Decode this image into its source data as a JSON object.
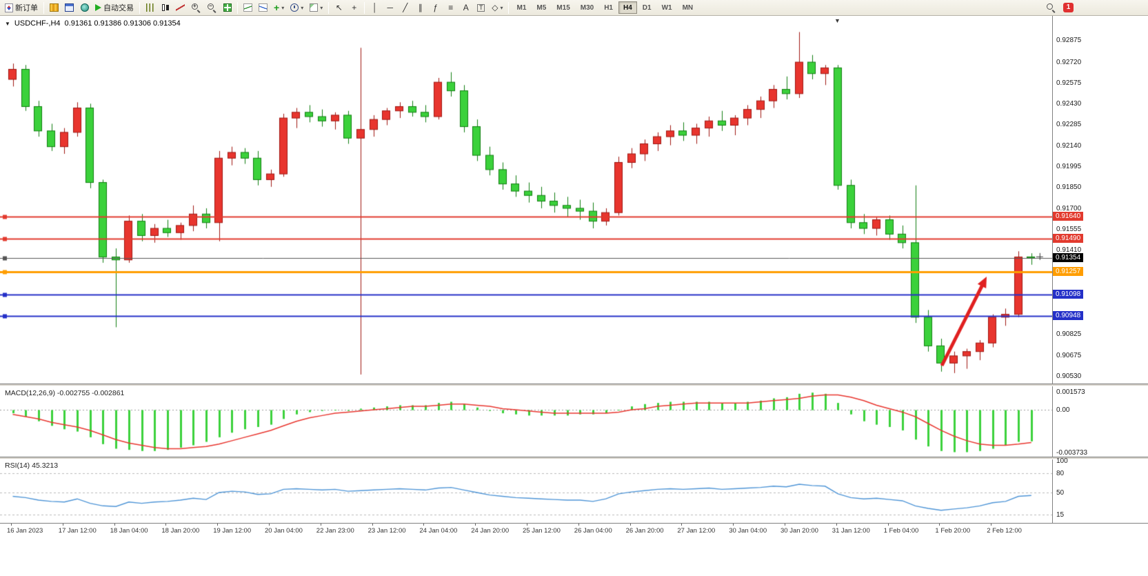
{
  "toolbar": {
    "new_order_label": "新订单",
    "auto_trading_label": "自动交易",
    "timeframes": [
      "M1",
      "M5",
      "M15",
      "M30",
      "H1",
      "H4",
      "D1",
      "W1",
      "MN"
    ],
    "active_timeframe": "H4",
    "notification_count": "1"
  },
  "icons": {
    "dropdown": "▾",
    "cursor": "↖",
    "crosshair": "+",
    "vertical_line": "│",
    "horizontal_line": "─",
    "trendline": "╱",
    "channel": "∥",
    "fibonacci": "ƒ",
    "levels": "≡",
    "text_tool": "A",
    "label_tool": "T",
    "shapes": "◇",
    "zoom_in_sign": "+",
    "zoom_out_sign": "−",
    "chart_menu": "▼",
    "shift_marker": "▼"
  },
  "colors": {
    "bull_fill": "#e8352e",
    "bull_stroke": "#9e1510",
    "bear_fill": "#3bd13b",
    "bear_stroke": "#0f7d0f",
    "macd_hist": "#3bd13b",
    "macd_signal": "#e8352e",
    "rsi_line": "#4d94d6",
    "level_line": "#b9b9b9",
    "bid_box": "#000000",
    "arrow": "#e02020"
  },
  "chart": {
    "title": "USDCHF-,H4",
    "ohlc": "0.91361 0.91386 0.91306 0.91354"
  },
  "chart_data": {
    "type": "candlestick",
    "symbol": "USDCHF",
    "timeframe": "H4",
    "ylim": [
      0.90477,
      0.93043
    ],
    "price_axis_labels": [
      "0.92875",
      "0.92720",
      "0.92575",
      "0.92430",
      "0.92285",
      "0.92140",
      "0.91995",
      "0.91850",
      "0.91700",
      "0.91555",
      "0.91410",
      "0.90825",
      "0.90675",
      "0.90530"
    ],
    "price_lines": [
      {
        "name": "resistance-line-1",
        "price": 0.9164,
        "label": "0.91640",
        "color": "#e23a2e",
        "lw": 2
      },
      {
        "name": "resistance-line-2",
        "price": 0.9149,
        "label": "0.91490",
        "color": "#e23a2e",
        "lw": 2
      },
      {
        "name": "bid-price-line",
        "price": 0.91354,
        "label": "0.91354",
        "color": "#555555",
        "lw": 1,
        "box": "#000000"
      },
      {
        "name": "horizontal-line-orange",
        "price": 0.91257,
        "label": "0.91257",
        "color": "#ff9d00",
        "lw": 3
      },
      {
        "name": "support-line-1",
        "price": 0.91098,
        "label": "0.91098",
        "color": "#2430c8",
        "lw": 2
      },
      {
        "name": "support-line-2",
        "price": 0.90948,
        "label": "0.90948",
        "color": "#2430c8",
        "lw": 2
      }
    ],
    "candles": [
      [
        0.926,
        0.9271,
        0.9255,
        0.9267
      ],
      [
        0.9267,
        0.927,
        0.9238,
        0.9241
      ],
      [
        0.9241,
        0.9245,
        0.922,
        0.9224
      ],
      [
        0.9224,
        0.9229,
        0.921,
        0.9213
      ],
      [
        0.9213,
        0.9226,
        0.9208,
        0.9223
      ],
      [
        0.9223,
        0.9244,
        0.922,
        0.924
      ],
      [
        0.924,
        0.9243,
        0.9184,
        0.9188
      ],
      [
        0.9188,
        0.919,
        0.9132,
        0.9136
      ],
      [
        0.9136,
        0.9142,
        0.9087,
        0.9134
      ],
      [
        0.9134,
        0.9165,
        0.9132,
        0.9161
      ],
      [
        0.9161,
        0.9166,
        0.9147,
        0.9151
      ],
      [
        0.9151,
        0.9159,
        0.9146,
        0.9156
      ],
      [
        0.9156,
        0.9162,
        0.915,
        0.9153
      ],
      [
        0.9153,
        0.916,
        0.9148,
        0.9158
      ],
      [
        0.9158,
        0.9172,
        0.9154,
        0.9166
      ],
      [
        0.9166,
        0.917,
        0.9156,
        0.916
      ],
      [
        0.916,
        0.921,
        0.9147,
        0.9205
      ],
      [
        0.9205,
        0.9213,
        0.92,
        0.9209
      ],
      [
        0.9209,
        0.9212,
        0.9201,
        0.9205
      ],
      [
        0.9205,
        0.921,
        0.9186,
        0.919
      ],
      [
        0.919,
        0.9197,
        0.9185,
        0.9194
      ],
      [
        0.9194,
        0.9236,
        0.9192,
        0.9233
      ],
      [
        0.9233,
        0.924,
        0.9226,
        0.9237
      ],
      [
        0.9237,
        0.9242,
        0.923,
        0.9234
      ],
      [
        0.9234,
        0.9239,
        0.9227,
        0.9231
      ],
      [
        0.9231,
        0.9237,
        0.9225,
        0.9235
      ],
      [
        0.9235,
        0.9238,
        0.9215,
        0.9219
      ],
      [
        0.9219,
        0.9282,
        0.9054,
        0.9225
      ],
      [
        0.9225,
        0.9235,
        0.922,
        0.9232
      ],
      [
        0.9232,
        0.924,
        0.9228,
        0.9238
      ],
      [
        0.9238,
        0.9244,
        0.9233,
        0.9241
      ],
      [
        0.9241,
        0.9245,
        0.9234,
        0.9237
      ],
      [
        0.9237,
        0.9242,
        0.923,
        0.9234
      ],
      [
        0.9234,
        0.9261,
        0.9232,
        0.9258
      ],
      [
        0.9258,
        0.9265,
        0.9248,
        0.9252
      ],
      [
        0.9252,
        0.9256,
        0.9223,
        0.9227
      ],
      [
        0.9227,
        0.9232,
        0.9203,
        0.9207
      ],
      [
        0.9207,
        0.9213,
        0.9193,
        0.9197
      ],
      [
        0.9197,
        0.9202,
        0.9183,
        0.9187
      ],
      [
        0.9187,
        0.9193,
        0.9178,
        0.9182
      ],
      [
        0.9182,
        0.9188,
        0.9174,
        0.9179
      ],
      [
        0.9179,
        0.9185,
        0.917,
        0.9175
      ],
      [
        0.9175,
        0.9181,
        0.9167,
        0.9172
      ],
      [
        0.9172,
        0.9178,
        0.9164,
        0.917
      ],
      [
        0.917,
        0.9176,
        0.9162,
        0.9168
      ],
      [
        0.9168,
        0.9174,
        0.9156,
        0.9161
      ],
      [
        0.9161,
        0.917,
        0.9158,
        0.9167
      ],
      [
        0.9167,
        0.9206,
        0.9165,
        0.9202
      ],
      [
        0.9202,
        0.9212,
        0.9198,
        0.9208
      ],
      [
        0.9208,
        0.9218,
        0.9203,
        0.9215
      ],
      [
        0.9215,
        0.9223,
        0.921,
        0.922
      ],
      [
        0.922,
        0.9228,
        0.9214,
        0.9224
      ],
      [
        0.9224,
        0.923,
        0.9217,
        0.9221
      ],
      [
        0.9221,
        0.9229,
        0.9215,
        0.9226
      ],
      [
        0.9226,
        0.9234,
        0.922,
        0.9231
      ],
      [
        0.9231,
        0.9238,
        0.9224,
        0.9228
      ],
      [
        0.9228,
        0.9235,
        0.9221,
        0.9233
      ],
      [
        0.9233,
        0.9242,
        0.9228,
        0.9239
      ],
      [
        0.9239,
        0.9248,
        0.9233,
        0.9245
      ],
      [
        0.9245,
        0.9256,
        0.924,
        0.9253
      ],
      [
        0.9253,
        0.9262,
        0.9246,
        0.925
      ],
      [
        0.925,
        0.9293,
        0.9247,
        0.9272
      ],
      [
        0.9272,
        0.9277,
        0.926,
        0.9264
      ],
      [
        0.9264,
        0.927,
        0.9256,
        0.9268
      ],
      [
        0.9268,
        0.927,
        0.9183,
        0.9186
      ],
      [
        0.9186,
        0.919,
        0.9156,
        0.916
      ],
      [
        0.916,
        0.9166,
        0.9152,
        0.9156
      ],
      [
        0.9156,
        0.9164,
        0.9151,
        0.9162
      ],
      [
        0.9162,
        0.9165,
        0.9148,
        0.9152
      ],
      [
        0.9152,
        0.9158,
        0.9142,
        0.9146
      ],
      [
        0.9146,
        0.9186,
        0.909,
        0.9094
      ],
      [
        0.9094,
        0.9099,
        0.907,
        0.9074
      ],
      [
        0.9074,
        0.9079,
        0.9056,
        0.9062
      ],
      [
        0.9062,
        0.907,
        0.9055,
        0.9067
      ],
      [
        0.9067,
        0.9072,
        0.9058,
        0.907
      ],
      [
        0.907,
        0.9078,
        0.9064,
        0.9076
      ],
      [
        0.9076,
        0.9096,
        0.9073,
        0.9094
      ],
      [
        0.9094,
        0.91,
        0.9088,
        0.9096
      ],
      [
        0.9096,
        0.914,
        0.9094,
        0.9136
      ],
      [
        0.91361,
        0.91386,
        0.91306,
        0.91354
      ]
    ],
    "time_labels": [
      "16 Jan 2023",
      "17 Jan 12:00",
      "18 Jan 04:00",
      "18 Jan 20:00",
      "19 Jan 12:00",
      "20 Jan 04:00",
      "22 Jan 23:00",
      "23 Jan 12:00",
      "24 Jan 04:00",
      "24 Jan 20:00",
      "25 Jan 12:00",
      "26 Jan 04:00",
      "26 Jan 20:00",
      "27 Jan 12:00",
      "30 Jan 04:00",
      "30 Jan 20:00",
      "31 Jan 12:00",
      "1 Feb 04:00",
      "1 Feb 20:00",
      "2 Feb 12:00"
    ],
    "indicators": {
      "macd": {
        "label": "MACD(12,26,9)",
        "values": "-0.002755 -0.002861",
        "axis_labels": [
          "0.001573",
          "0.00",
          "-0.003733"
        ],
        "scale_max": 0.001573,
        "scale_min": -0.003733,
        "hist": [
          -0.0003,
          -0.0006,
          -0.001,
          -0.0014,
          -0.0017,
          -0.0019,
          -0.0024,
          -0.003,
          -0.0034,
          -0.0035,
          -0.0036,
          -0.0036,
          -0.0035,
          -0.0033,
          -0.0031,
          -0.0028,
          -0.0024,
          -0.002,
          -0.0017,
          -0.0015,
          -0.0013,
          -0.0008,
          -0.0004,
          -0.0002,
          -0.0001,
          0.0,
          -0.0001,
          0.0001,
          0.0002,
          0.0003,
          0.0004,
          0.0004,
          0.0004,
          0.0006,
          0.0007,
          0.0005,
          0.0002,
          -0.0001,
          -0.0003,
          -0.0004,
          -0.0005,
          -0.0005,
          -0.0005,
          -0.0005,
          -0.0004,
          -0.0004,
          -0.0003,
          0.0,
          0.0003,
          0.0005,
          0.0006,
          0.0007,
          0.0007,
          0.0007,
          0.0007,
          0.0006,
          0.0006,
          0.0007,
          0.0008,
          0.001,
          0.0011,
          0.0014,
          0.0015,
          0.0014,
          0.0006,
          -0.0004,
          -0.001,
          -0.0013,
          -0.0015,
          -0.0018,
          -0.0026,
          -0.0032,
          -0.0036,
          -0.0037,
          -0.0037,
          -0.0036,
          -0.0034,
          -0.0031,
          -0.0028,
          -0.002755
        ],
        "signal": [
          -0.0004,
          -0.0006,
          -0.0008,
          -0.0011,
          -0.0013,
          -0.0015,
          -0.0018,
          -0.0022,
          -0.0026,
          -0.0029,
          -0.0031,
          -0.0033,
          -0.0034,
          -0.0034,
          -0.0033,
          -0.0032,
          -0.003,
          -0.0027,
          -0.0024,
          -0.0021,
          -0.0018,
          -0.0014,
          -0.001,
          -0.0007,
          -0.0005,
          -0.0003,
          -0.0002,
          -0.0001,
          0.0,
          0.0001,
          0.0002,
          0.0003,
          0.0003,
          0.0004,
          0.0005,
          0.0005,
          0.0004,
          0.0003,
          0.0001,
          0.0,
          -0.0001,
          -0.0002,
          -0.0003,
          -0.0003,
          -0.0003,
          -0.0003,
          -0.0003,
          -0.0002,
          0.0,
          0.0001,
          0.0003,
          0.0004,
          0.0005,
          0.0006,
          0.0006,
          0.0006,
          0.0006,
          0.0006,
          0.0007,
          0.0008,
          0.0009,
          0.001,
          0.0012,
          0.0013,
          0.0013,
          0.0011,
          0.0008,
          0.0004,
          0.0001,
          -0.0002,
          -0.0006,
          -0.0012,
          -0.0018,
          -0.0023,
          -0.0027,
          -0.003,
          -0.0031,
          -0.0031,
          -0.003,
          -0.002861
        ]
      },
      "rsi": {
        "label": "RSI(14)",
        "value": "45.3213",
        "axis_labels": [
          "100",
          "80",
          "50",
          "15"
        ],
        "axis_values": [
          100,
          80,
          50,
          15
        ],
        "levels": [
          80,
          50,
          15
        ],
        "values": [
          44,
          42,
          38,
          36,
          35,
          40,
          33,
          29,
          28,
          35,
          33,
          35,
          36,
          38,
          41,
          39,
          50,
          52,
          51,
          47,
          48,
          55,
          56,
          55,
          54,
          55,
          52,
          53,
          54,
          55,
          56,
          55,
          54,
          57,
          58,
          54,
          50,
          46,
          44,
          42,
          41,
          40,
          39,
          38,
          38,
          36,
          40,
          48,
          51,
          53,
          55,
          56,
          55,
          56,
          57,
          55,
          56,
          57,
          58,
          60,
          59,
          63,
          61,
          60,
          48,
          42,
          40,
          41,
          39,
          37,
          29,
          25,
          22,
          24,
          26,
          29,
          34,
          36,
          44,
          45.3213
        ]
      }
    },
    "annotations": [
      {
        "type": "arrow",
        "from": [
          1366,
          530
        ],
        "to": [
          1431,
          401
        ],
        "color": "#e02020"
      }
    ]
  }
}
